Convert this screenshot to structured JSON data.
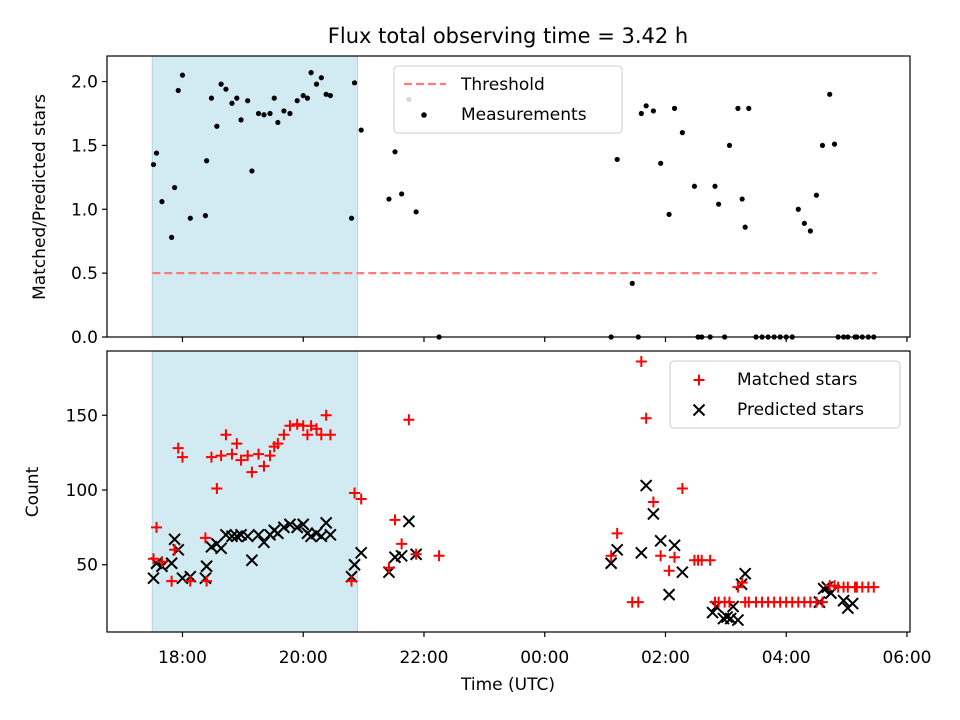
{
  "title": "Flux total observing time = 3.42 h",
  "colors": {
    "shade": "#add8e6",
    "threshold": "#ff7b7b",
    "measurement": "#000000",
    "matched": "#ff0000",
    "predicted": "#000000"
  },
  "chart_data": [
    {
      "type": "scatter",
      "panel": "top",
      "xlabel": "",
      "ylabel": "Matched/Predicted stars",
      "xlim": [
        16.75,
        30.05
      ],
      "ylim": [
        0.0,
        2.2
      ],
      "yticks": [
        0.0,
        0.5,
        1.0,
        1.5,
        2.0
      ],
      "yticklabels": [
        "0.0",
        "0.5",
        "1.0",
        "1.5",
        "2.0"
      ],
      "shaded_interval": [
        17.5,
        20.9
      ],
      "legend": [
        "Threshold",
        "Measurements"
      ],
      "legend_position": "top-center",
      "threshold": {
        "name": "Threshold",
        "value": 0.5,
        "x_range": [
          17.5,
          29.5
        ]
      },
      "series": [
        {
          "name": "Measurements",
          "x": [
            17.52,
            17.57,
            17.66,
            17.82,
            17.87,
            17.93,
            18.0,
            18.13,
            18.38,
            18.4,
            18.48,
            18.57,
            18.64,
            18.72,
            18.82,
            18.9,
            18.97,
            19.08,
            19.15,
            19.26,
            19.35,
            19.45,
            19.52,
            19.58,
            19.68,
            19.78,
            19.9,
            20.0,
            20.07,
            20.13,
            20.22,
            20.3,
            20.38,
            20.45,
            20.8,
            20.85,
            20.96,
            21.42,
            21.52,
            21.63,
            21.75,
            21.87,
            22.25,
            25.1,
            25.2,
            25.45,
            25.55,
            25.6,
            25.68,
            25.8,
            25.92,
            26.06,
            26.15,
            26.28,
            26.48,
            26.54,
            26.6,
            26.74,
            26.82,
            26.88,
            26.98,
            27.06,
            27.2,
            27.27,
            27.32,
            27.38,
            27.5,
            27.6,
            27.7,
            27.8,
            27.9,
            28.0,
            28.1,
            28.2,
            28.3,
            28.4,
            28.5,
            28.6,
            28.72,
            28.8,
            28.86,
            28.95,
            29.02,
            29.14,
            29.17,
            29.26,
            29.36,
            29.45
          ],
          "y": [
            1.35,
            1.44,
            1.06,
            0.78,
            1.17,
            1.93,
            2.05,
            0.93,
            0.95,
            1.38,
            1.87,
            1.65,
            1.98,
            1.94,
            1.83,
            1.87,
            1.7,
            1.85,
            1.3,
            1.75,
            1.74,
            1.75,
            1.87,
            1.68,
            1.77,
            1.75,
            1.85,
            1.89,
            1.87,
            2.07,
            1.98,
            2.03,
            1.9,
            1.89,
            0.93,
            1.99,
            1.62,
            1.08,
            1.45,
            1.12,
            1.86,
            0.98,
            0.0,
            0.0,
            1.39,
            0.42,
            0.0,
            1.75,
            1.81,
            1.77,
            1.36,
            0.96,
            1.79,
            1.6,
            1.18,
            0.0,
            0.0,
            0.0,
            1.18,
            1.04,
            0.0,
            1.5,
            1.79,
            1.08,
            0.86,
            1.79,
            0.0,
            0.0,
            0.0,
            0.0,
            0.0,
            0.0,
            0.0,
            1.0,
            0.89,
            0.83,
            1.11,
            1.5,
            1.9,
            1.51,
            0.0,
            0.0,
            0.0,
            0.0,
            0.0,
            0.0,
            0.0,
            0.0
          ]
        }
      ]
    },
    {
      "type": "scatter",
      "panel": "bottom",
      "xlabel": "Time (UTC)",
      "ylabel": "Count",
      "xlim": [
        16.75,
        30.05
      ],
      "ylim": [
        5,
        193
      ],
      "yticks": [
        50,
        100,
        150
      ],
      "yticklabels": [
        "50",
        "100",
        "150"
      ],
      "xticks": [
        18,
        20,
        22,
        24,
        26,
        28,
        30
      ],
      "xticklabels": [
        "18:00",
        "20:00",
        "22:00",
        "00:00",
        "02:00",
        "04:00",
        "06:00"
      ],
      "shaded_interval": [
        17.5,
        20.9
      ],
      "legend": [
        "Matched stars",
        "Predicted stars"
      ],
      "legend_position": "top-right",
      "series": [
        {
          "name": "Matched stars",
          "x": [
            17.52,
            17.57,
            17.66,
            17.82,
            17.87,
            17.93,
            18.0,
            18.13,
            18.38,
            18.4,
            18.48,
            18.57,
            18.64,
            18.72,
            18.82,
            18.9,
            18.97,
            19.08,
            19.15,
            19.26,
            19.35,
            19.45,
            19.52,
            19.58,
            19.68,
            19.78,
            19.9,
            20.0,
            20.07,
            20.13,
            20.22,
            20.3,
            20.38,
            20.45,
            20.8,
            20.85,
            20.96,
            21.42,
            21.52,
            21.63,
            21.75,
            21.87,
            22.25,
            25.1,
            25.2,
            25.45,
            25.55,
            25.6,
            25.68,
            25.8,
            25.92,
            26.06,
            26.15,
            26.28,
            26.48,
            26.54,
            26.6,
            26.74,
            26.82,
            26.88,
            26.98,
            27.06,
            27.2,
            27.27,
            27.32,
            27.38,
            27.5,
            27.6,
            27.7,
            27.8,
            27.9,
            28.0,
            28.1,
            28.2,
            28.3,
            28.4,
            28.5,
            28.6,
            28.72,
            28.8,
            28.86,
            28.95,
            29.02,
            29.14,
            29.17,
            29.26,
            29.36,
            29.45
          ],
          "y": [
            54,
            75,
            52,
            39,
            60,
            128,
            122,
            39,
            68,
            39,
            122,
            101,
            123,
            137,
            124,
            131,
            120,
            123,
            112,
            124,
            116,
            123,
            129,
            131,
            137,
            143,
            144,
            143,
            137,
            143,
            141,
            137,
            150,
            137,
            39,
            98,
            94,
            48,
            80,
            64,
            147,
            57,
            56,
            56,
            71,
            25,
            25,
            186,
            148,
            92,
            56,
            46,
            55,
            101,
            53,
            53,
            53,
            53,
            25,
            25,
            25,
            25,
            35,
            38,
            25,
            25,
            25,
            25,
            25,
            25,
            25,
            25,
            25,
            25,
            25,
            25,
            25,
            25,
            36,
            36,
            35,
            35,
            35,
            35,
            35,
            35,
            35,
            35
          ]
        },
        {
          "name": "Predicted stars",
          "x": [
            17.52,
            17.57,
            17.66,
            17.82,
            17.87,
            17.93,
            18.0,
            18.13,
            18.38,
            18.4,
            18.48,
            18.57,
            18.64,
            18.72,
            18.82,
            18.9,
            18.97,
            19.08,
            19.15,
            19.26,
            19.35,
            19.45,
            19.52,
            19.58,
            19.68,
            19.78,
            19.9,
            20.0,
            20.07,
            20.13,
            20.22,
            20.3,
            20.38,
            20.45,
            20.8,
            20.85,
            20.96,
            21.42,
            21.52,
            21.63,
            21.75,
            21.87,
            25.1,
            25.2,
            25.6,
            25.68,
            25.8,
            25.92,
            26.06,
            26.15,
            26.28,
            26.78,
            26.84,
            26.96,
            27.02,
            27.08,
            27.12,
            27.2,
            27.26,
            27.32,
            28.55,
            28.62,
            28.68,
            28.74,
            28.95,
            29.02,
            29.1
          ],
          "y": [
            41,
            51,
            49,
            51,
            67,
            60,
            41,
            42,
            41,
            49,
            62,
            64,
            61,
            70,
            69,
            69,
            70,
            69,
            53,
            70,
            65,
            70,
            73,
            71,
            75,
            77,
            75,
            77,
            71,
            69,
            71,
            69,
            78,
            70,
            42,
            50,
            58,
            45,
            55,
            56,
            79,
            57,
            51,
            60,
            58,
            103,
            84,
            66,
            30,
            63,
            45,
            18,
            22,
            14,
            15,
            14,
            22,
            13,
            37,
            44,
            25,
            34,
            35,
            31,
            26,
            21,
            24
          ]
        }
      ]
    }
  ]
}
